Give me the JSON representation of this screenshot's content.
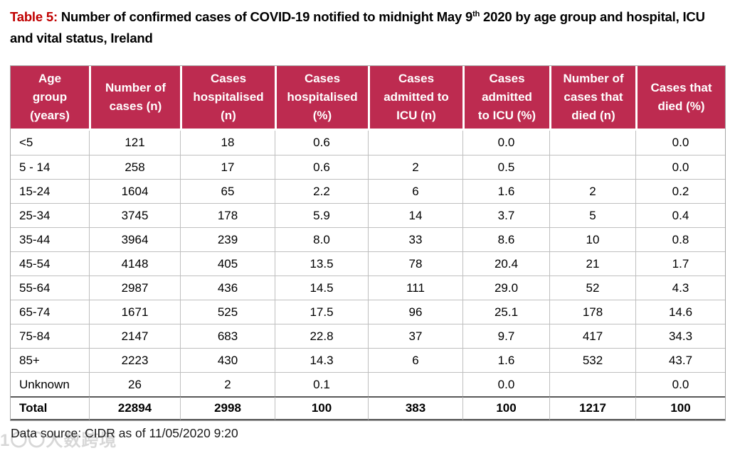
{
  "title": {
    "label": "Table 5:",
    "before_sup": " Number of confirmed cases of COVID-19 notified to midnight May 9",
    "sup": "th",
    "after_sup": " 2020 by age group and hospital, ICU and vital status, Ireland"
  },
  "colors": {
    "header_bg": "#BD2B50",
    "title_accent": "#C00000",
    "grid_line": "#BFBFBF",
    "outer_border": "#A6A6A6",
    "total_border": "#595959"
  },
  "table": {
    "columns": [
      [
        "Age",
        "group",
        "(years)"
      ],
      [
        "Number of",
        "cases (n)"
      ],
      [
        "Cases",
        "hospitalised",
        "(n)"
      ],
      [
        "Cases",
        "hospitalised",
        "(%)"
      ],
      [
        "Cases",
        "admitted to",
        "ICU (n)"
      ],
      [
        "Cases",
        "admitted",
        "to ICU (%)"
      ],
      [
        "Number of",
        "cases that",
        "died (n)"
      ],
      [
        "Cases that",
        "died (%)"
      ]
    ],
    "rows": [
      [
        "<5",
        "121",
        "18",
        "0.6",
        "",
        "0.0",
        "",
        "0.0"
      ],
      [
        "5 - 14",
        "258",
        "17",
        "0.6",
        "2",
        "0.5",
        "",
        "0.0"
      ],
      [
        "15-24",
        "1604",
        "65",
        "2.2",
        "6",
        "1.6",
        "2",
        "0.2"
      ],
      [
        "25-34",
        "3745",
        "178",
        "5.9",
        "14",
        "3.7",
        "5",
        "0.4"
      ],
      [
        "35-44",
        "3964",
        "239",
        "8.0",
        "33",
        "8.6",
        "10",
        "0.8"
      ],
      [
        "45-54",
        "4148",
        "405",
        "13.5",
        "78",
        "20.4",
        "21",
        "1.7"
      ],
      [
        "55-64",
        "2987",
        "436",
        "14.5",
        "111",
        "29.0",
        "52",
        "4.3"
      ],
      [
        "65-74",
        "1671",
        "525",
        "17.5",
        "96",
        "25.1",
        "178",
        "14.6"
      ],
      [
        "75-84",
        "2147",
        "683",
        "22.8",
        "37",
        "9.7",
        "417",
        "34.3"
      ],
      [
        "85+",
        "2223",
        "430",
        "14.3",
        "6",
        "1.6",
        "532",
        "43.7"
      ],
      [
        "Unknown",
        "26",
        "2",
        "0.1",
        "",
        "0.0",
        "",
        "0.0"
      ]
    ],
    "total": [
      "Total",
      "22894",
      "2998",
      "100",
      "383",
      "100",
      "1217",
      "100"
    ]
  },
  "footer": {
    "data_source": "Data source: CIDR as of 11/05/2020 9:20"
  },
  "watermark": "1〇〇大数跨境"
}
